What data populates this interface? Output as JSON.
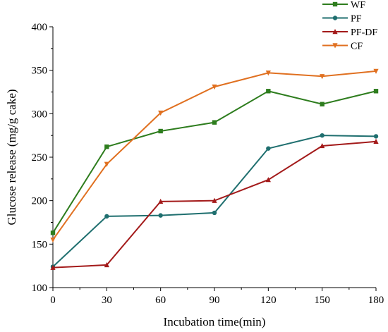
{
  "chart_data": {
    "type": "line",
    "title": "",
    "xlabel": "Incubation time(min)",
    "ylabel": "Glucose release (mg/g cake)",
    "x": [
      0,
      30,
      60,
      90,
      120,
      150,
      180
    ],
    "xlim": [
      0,
      180
    ],
    "ylim": [
      100,
      400
    ],
    "xticks": [
      0,
      30,
      60,
      90,
      120,
      150,
      180
    ],
    "yticks": [
      100,
      150,
      200,
      250,
      300,
      350,
      400
    ],
    "grid": false,
    "legend": "top-right",
    "series": [
      {
        "name": "WF",
        "color": "#2e7d1e",
        "marker": "square",
        "values": [
          163,
          262,
          280,
          290,
          326,
          311,
          326
        ]
      },
      {
        "name": "PF",
        "color": "#1f6f6f",
        "marker": "circle",
        "values": [
          124,
          182,
          183,
          186,
          260,
          275,
          274
        ]
      },
      {
        "name": "PF-DF",
        "color": "#a31a1a",
        "marker": "triangle-up",
        "values": [
          123,
          126,
          199,
          200,
          224,
          263,
          268
        ]
      },
      {
        "name": "CF",
        "color": "#e07020",
        "marker": "triangle-down",
        "values": [
          155,
          242,
          301,
          331,
          347,
          343,
          349
        ]
      }
    ]
  }
}
